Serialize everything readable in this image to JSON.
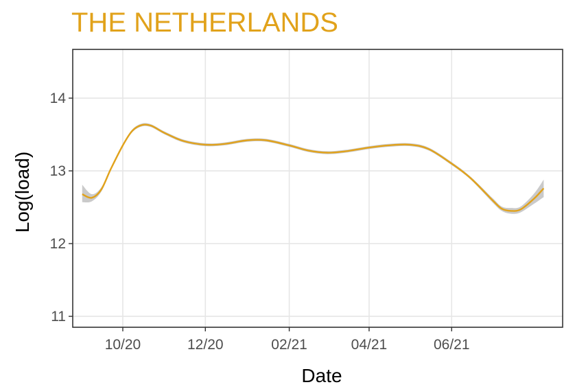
{
  "colors": {
    "title": "#E1A21B",
    "line": "#E1A21B",
    "ribbon": "#A6A6A6",
    "grid": "#E6E6E6",
    "panel_border": "#333333"
  },
  "chart_data": {
    "type": "line",
    "title": "THE NETHERLANDS",
    "xlabel": "Date",
    "ylabel": "Log(load)",
    "ylim": [
      10.85,
      14.67
    ],
    "xlim": [
      "2020-08-25",
      "2021-08-22"
    ],
    "grid": true,
    "legend": "none",
    "x_ticks": [
      {
        "date": "2020-10-01",
        "label": "10/20"
      },
      {
        "date": "2020-12-01",
        "label": "12/20"
      },
      {
        "date": "2021-02-01",
        "label": "02/21"
      },
      {
        "date": "2021-04-01",
        "label": "04/21"
      },
      {
        "date": "2021-06-01",
        "label": "06/21"
      }
    ],
    "y_ticks": [
      11,
      12,
      13,
      14
    ],
    "series": [
      {
        "x": [
          "2020-09-01",
          "2020-09-08",
          "2020-09-15",
          "2020-09-22",
          "2020-10-01",
          "2020-10-08",
          "2020-10-15",
          "2020-10-22",
          "2020-11-01",
          "2020-11-15",
          "2020-12-01",
          "2020-12-15",
          "2021-01-01",
          "2021-01-15",
          "2021-02-01",
          "2021-02-15",
          "2021-03-01",
          "2021-03-15",
          "2021-04-01",
          "2021-04-15",
          "2021-05-01",
          "2021-05-15",
          "2021-06-01",
          "2021-06-15",
          "2021-07-01",
          "2021-07-08",
          "2021-07-15",
          "2021-07-22",
          "2021-08-01",
          "2021-08-08"
        ],
        "y": [
          12.68,
          12.63,
          12.74,
          13.02,
          13.35,
          13.55,
          13.63,
          13.62,
          13.52,
          13.41,
          13.36,
          13.37,
          13.42,
          13.42,
          13.35,
          13.28,
          13.25,
          13.27,
          13.32,
          13.35,
          13.36,
          13.3,
          13.1,
          12.9,
          12.6,
          12.48,
          12.45,
          12.47,
          12.62,
          12.76
        ],
        "lower": [
          12.57,
          12.58,
          12.71,
          13.0,
          13.33,
          13.53,
          13.61,
          13.6,
          13.5,
          13.39,
          13.34,
          13.35,
          13.4,
          13.4,
          13.33,
          13.26,
          13.23,
          13.25,
          13.3,
          13.33,
          13.34,
          13.28,
          13.08,
          12.88,
          12.57,
          12.45,
          12.41,
          12.43,
          12.55,
          12.64
        ],
        "upper": [
          12.81,
          12.68,
          12.77,
          13.04,
          13.37,
          13.57,
          13.65,
          13.64,
          13.54,
          13.43,
          13.38,
          13.39,
          13.44,
          13.44,
          13.37,
          13.3,
          13.27,
          13.29,
          13.34,
          13.37,
          13.38,
          13.32,
          13.12,
          12.92,
          12.63,
          12.51,
          12.49,
          12.51,
          12.69,
          12.88
        ]
      }
    ]
  }
}
